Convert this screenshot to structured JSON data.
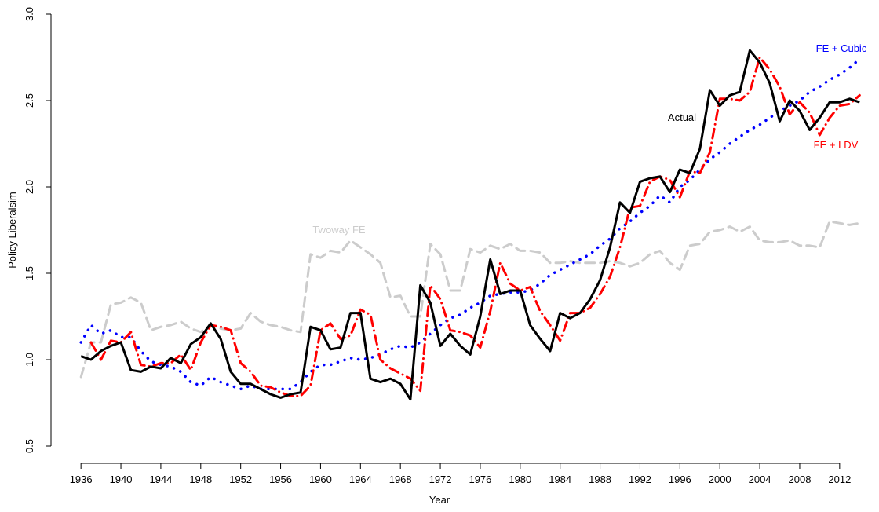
{
  "chart_data": {
    "type": "line",
    "x_label": "Year",
    "y_label": "Policy Liberalsim",
    "x": [
      1936,
      1937,
      1938,
      1939,
      1940,
      1941,
      1942,
      1943,
      1944,
      1945,
      1946,
      1947,
      1948,
      1949,
      1950,
      1951,
      1952,
      1953,
      1954,
      1955,
      1956,
      1957,
      1958,
      1959,
      1960,
      1961,
      1962,
      1963,
      1964,
      1965,
      1966,
      1967,
      1968,
      1969,
      1970,
      1971,
      1972,
      1973,
      1974,
      1975,
      1976,
      1977,
      1978,
      1979,
      1980,
      1981,
      1982,
      1983,
      1984,
      1985,
      1986,
      1987,
      1988,
      1989,
      1990,
      1991,
      1992,
      1993,
      1994,
      1995,
      1996,
      1997,
      1998,
      1999,
      2000,
      2001,
      2002,
      2003,
      2004,
      2005,
      2006,
      2007,
      2008,
      2009,
      2010,
      2011,
      2012,
      2013,
      2014
    ],
    "xlim": [
      1933,
      2015
    ],
    "xticks": [
      1936,
      1940,
      1944,
      1948,
      1952,
      1956,
      1960,
      1964,
      1968,
      1972,
      1976,
      1980,
      1984,
      1988,
      1992,
      1996,
      2000,
      2004,
      2008,
      2012
    ],
    "ylim": [
      0.5,
      3.0
    ],
    "yticks": [
      0.5,
      {
        "value": 1.0,
        "label": "1.0"
      },
      1.5,
      {
        "value": 2.0,
        "label": "2.0"
      },
      2.5,
      {
        "value": 3.0,
        "label": "3.0"
      }
    ],
    "series": [
      {
        "name": "Twoway FE",
        "color": "#cccccc",
        "dash": "dashed",
        "values": [
          0.9,
          1.1,
          1.1,
          1.32,
          1.33,
          1.36,
          1.33,
          1.17,
          1.19,
          1.2,
          1.22,
          1.18,
          1.16,
          1.2,
          1.18,
          1.17,
          1.18,
          1.27,
          1.22,
          1.2,
          1.19,
          1.17,
          1.16,
          1.61,
          1.59,
          1.63,
          1.62,
          1.69,
          1.65,
          1.61,
          1.56,
          1.36,
          1.37,
          1.25,
          1.25,
          1.67,
          1.61,
          1.4,
          1.4,
          1.64,
          1.62,
          1.66,
          1.64,
          1.67,
          1.63,
          1.63,
          1.62,
          1.56,
          1.56,
          1.57,
          1.56,
          1.56,
          1.56,
          1.57,
          1.56,
          1.54,
          1.56,
          1.61,
          1.63,
          1.56,
          1.52,
          1.66,
          1.67,
          1.74,
          1.75,
          1.77,
          1.74,
          1.77,
          1.69,
          1.68,
          1.68,
          1.69,
          1.66,
          1.66,
          1.65,
          1.8,
          1.79,
          1.78,
          1.79
        ]
      },
      {
        "name": "FE + Cubic",
        "color": "#0000ff",
        "dash": "dotted",
        "values": [
          1.1,
          1.2,
          1.15,
          1.17,
          1.13,
          1.13,
          1.05,
          0.99,
          0.97,
          0.96,
          0.93,
          0.87,
          0.85,
          0.9,
          0.87,
          0.85,
          0.83,
          0.85,
          0.83,
          0.83,
          0.83,
          0.83,
          0.87,
          0.93,
          0.97,
          0.97,
          0.99,
          1.01,
          1.0,
          1.01,
          1.03,
          1.06,
          1.08,
          1.07,
          1.1,
          1.15,
          1.2,
          1.24,
          1.26,
          1.3,
          1.33,
          1.37,
          1.38,
          1.39,
          1.39,
          1.4,
          1.44,
          1.49,
          1.52,
          1.55,
          1.58,
          1.61,
          1.66,
          1.7,
          1.76,
          1.8,
          1.85,
          1.89,
          1.95,
          1.91,
          2.0,
          2.04,
          2.1,
          2.16,
          2.2,
          2.25,
          2.29,
          2.33,
          2.36,
          2.4,
          2.44,
          2.47,
          2.5,
          2.55,
          2.58,
          2.62,
          2.65,
          2.69,
          2.74
        ]
      },
      {
        "name": "FE + LDV",
        "color": "#ff0000",
        "dash": "dotdash",
        "values": [
          null,
          1.1,
          1.0,
          1.11,
          1.1,
          1.16,
          0.97,
          0.96,
          0.98,
          0.98,
          1.03,
          0.94,
          1.1,
          1.2,
          1.19,
          1.17,
          0.98,
          0.93,
          0.85,
          0.84,
          0.81,
          0.79,
          0.79,
          0.85,
          1.17,
          1.21,
          1.12,
          1.14,
          1.29,
          1.26,
          1.0,
          0.95,
          0.92,
          0.89,
          0.82,
          1.43,
          1.35,
          1.17,
          1.16,
          1.14,
          1.07,
          1.28,
          1.56,
          1.44,
          1.4,
          1.42,
          1.28,
          1.2,
          1.11,
          1.27,
          1.27,
          1.3,
          1.38,
          1.48,
          1.65,
          1.88,
          1.89,
          2.03,
          2.06,
          2.04,
          1.94,
          2.09,
          2.08,
          2.2,
          2.51,
          2.51,
          2.5,
          2.55,
          2.75,
          2.68,
          2.58,
          2.42,
          2.49,
          2.43,
          2.3,
          2.4,
          2.47,
          2.48,
          2.53
        ]
      },
      {
        "name": "Actual",
        "color": "#000000",
        "dash": "solid",
        "values": [
          1.02,
          1.0,
          1.05,
          1.08,
          1.1,
          0.94,
          0.93,
          0.96,
          0.95,
          1.01,
          0.98,
          1.09,
          1.13,
          1.21,
          1.12,
          0.93,
          0.86,
          0.86,
          0.83,
          0.8,
          0.78,
          0.8,
          0.81,
          1.19,
          1.17,
          1.06,
          1.07,
          1.27,
          1.27,
          0.89,
          0.87,
          0.89,
          0.86,
          0.77,
          1.43,
          1.33,
          1.08,
          1.15,
          1.08,
          1.03,
          1.25,
          1.58,
          1.38,
          1.4,
          1.4,
          1.2,
          1.12,
          1.05,
          1.27,
          1.24,
          1.27,
          1.35,
          1.46,
          1.65,
          1.91,
          1.85,
          2.03,
          2.05,
          2.06,
          1.97,
          2.1,
          2.08,
          2.22,
          2.56,
          2.47,
          2.53,
          2.55,
          2.79,
          2.72,
          2.6,
          2.38,
          2.5,
          2.44,
          2.33,
          2.4,
          2.49,
          2.49,
          2.51,
          2.49
        ]
      }
    ]
  }
}
